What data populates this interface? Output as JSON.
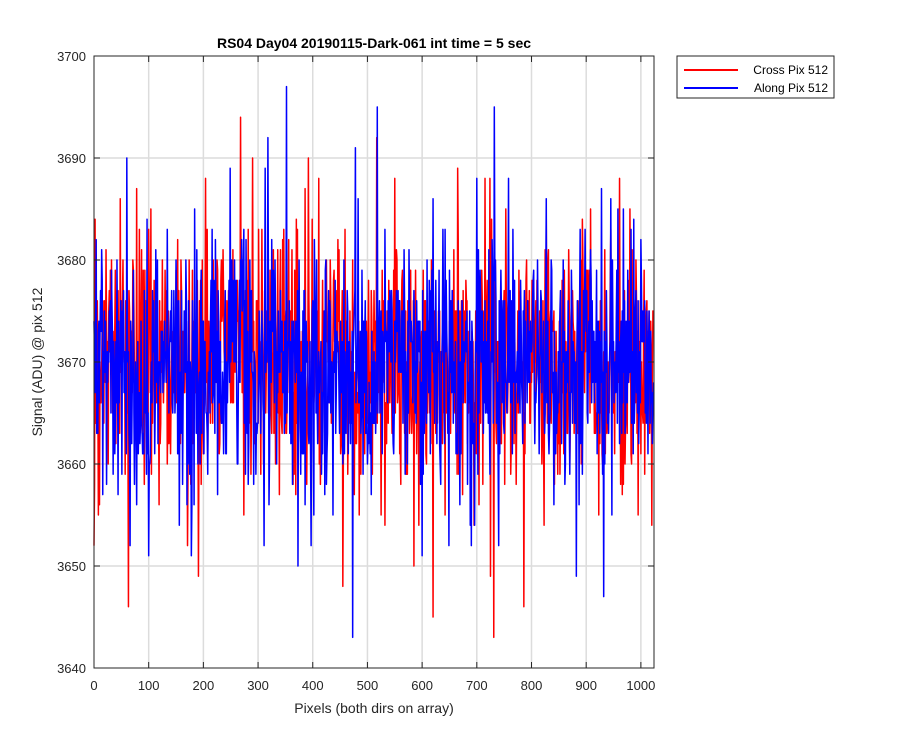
{
  "chart_data": {
    "type": "line",
    "title": "RS04 Day04 20190115-Dark-061 int time = 5 sec",
    "xlabel": "Pixels (both dirs on array)",
    "ylabel": "Signal (ADU) @ pix 512",
    "xlim": [
      0,
      1024
    ],
    "ylim": [
      3640,
      3700
    ],
    "xticks": [
      0,
      100,
      200,
      300,
      400,
      500,
      600,
      700,
      800,
      900,
      1000
    ],
    "yticks": [
      3640,
      3650,
      3660,
      3670,
      3680,
      3690,
      3700
    ],
    "grid": true,
    "legend_position": "outside-top-right",
    "series": [
      {
        "name": "Cross Pix 512",
        "color": "#ff0000",
        "mean": 3670,
        "peaks": [
          {
            "x": 0,
            "y": 3652
          },
          {
            "x": 2,
            "y": 3684
          },
          {
            "x": 8,
            "y": 3655
          },
          {
            "x": 63,
            "y": 3646
          },
          {
            "x": 78,
            "y": 3687
          },
          {
            "x": 104,
            "y": 3685
          },
          {
            "x": 191,
            "y": 3649
          },
          {
            "x": 204,
            "y": 3688
          },
          {
            "x": 268,
            "y": 3694
          },
          {
            "x": 274,
            "y": 3655
          },
          {
            "x": 290,
            "y": 3690
          },
          {
            "x": 392,
            "y": 3690
          },
          {
            "x": 411,
            "y": 3688
          },
          {
            "x": 455,
            "y": 3648
          },
          {
            "x": 517,
            "y": 3692
          },
          {
            "x": 525,
            "y": 3655
          },
          {
            "x": 550,
            "y": 3688
          },
          {
            "x": 585,
            "y": 3650
          },
          {
            "x": 620,
            "y": 3645
          },
          {
            "x": 665,
            "y": 3689
          },
          {
            "x": 725,
            "y": 3649
          },
          {
            "x": 731,
            "y": 3643
          },
          {
            "x": 753,
            "y": 3685
          },
          {
            "x": 786,
            "y": 3646
          },
          {
            "x": 827,
            "y": 3684
          },
          {
            "x": 908,
            "y": 3685
          },
          {
            "x": 980,
            "y": 3685
          },
          {
            "x": 1020,
            "y": 3654
          }
        ]
      },
      {
        "name": "Along Pix 512",
        "color": "#0000ff",
        "mean": 3670,
        "peaks": [
          {
            "x": 60,
            "y": 3690
          },
          {
            "x": 66,
            "y": 3652
          },
          {
            "x": 100,
            "y": 3651
          },
          {
            "x": 178,
            "y": 3651
          },
          {
            "x": 249,
            "y": 3689
          },
          {
            "x": 313,
            "y": 3689
          },
          {
            "x": 318,
            "y": 3692
          },
          {
            "x": 352,
            "y": 3697
          },
          {
            "x": 373,
            "y": 3650
          },
          {
            "x": 397,
            "y": 3652
          },
          {
            "x": 473,
            "y": 3643
          },
          {
            "x": 478,
            "y": 3691
          },
          {
            "x": 518,
            "y": 3695
          },
          {
            "x": 600,
            "y": 3651
          },
          {
            "x": 690,
            "y": 3652
          },
          {
            "x": 732,
            "y": 3695
          },
          {
            "x": 740,
            "y": 3652
          },
          {
            "x": 827,
            "y": 3686
          },
          {
            "x": 882,
            "y": 3649
          },
          {
            "x": 932,
            "y": 3647
          },
          {
            "x": 945,
            "y": 3686
          },
          {
            "x": 1000,
            "y": 3682
          }
        ]
      }
    ]
  }
}
